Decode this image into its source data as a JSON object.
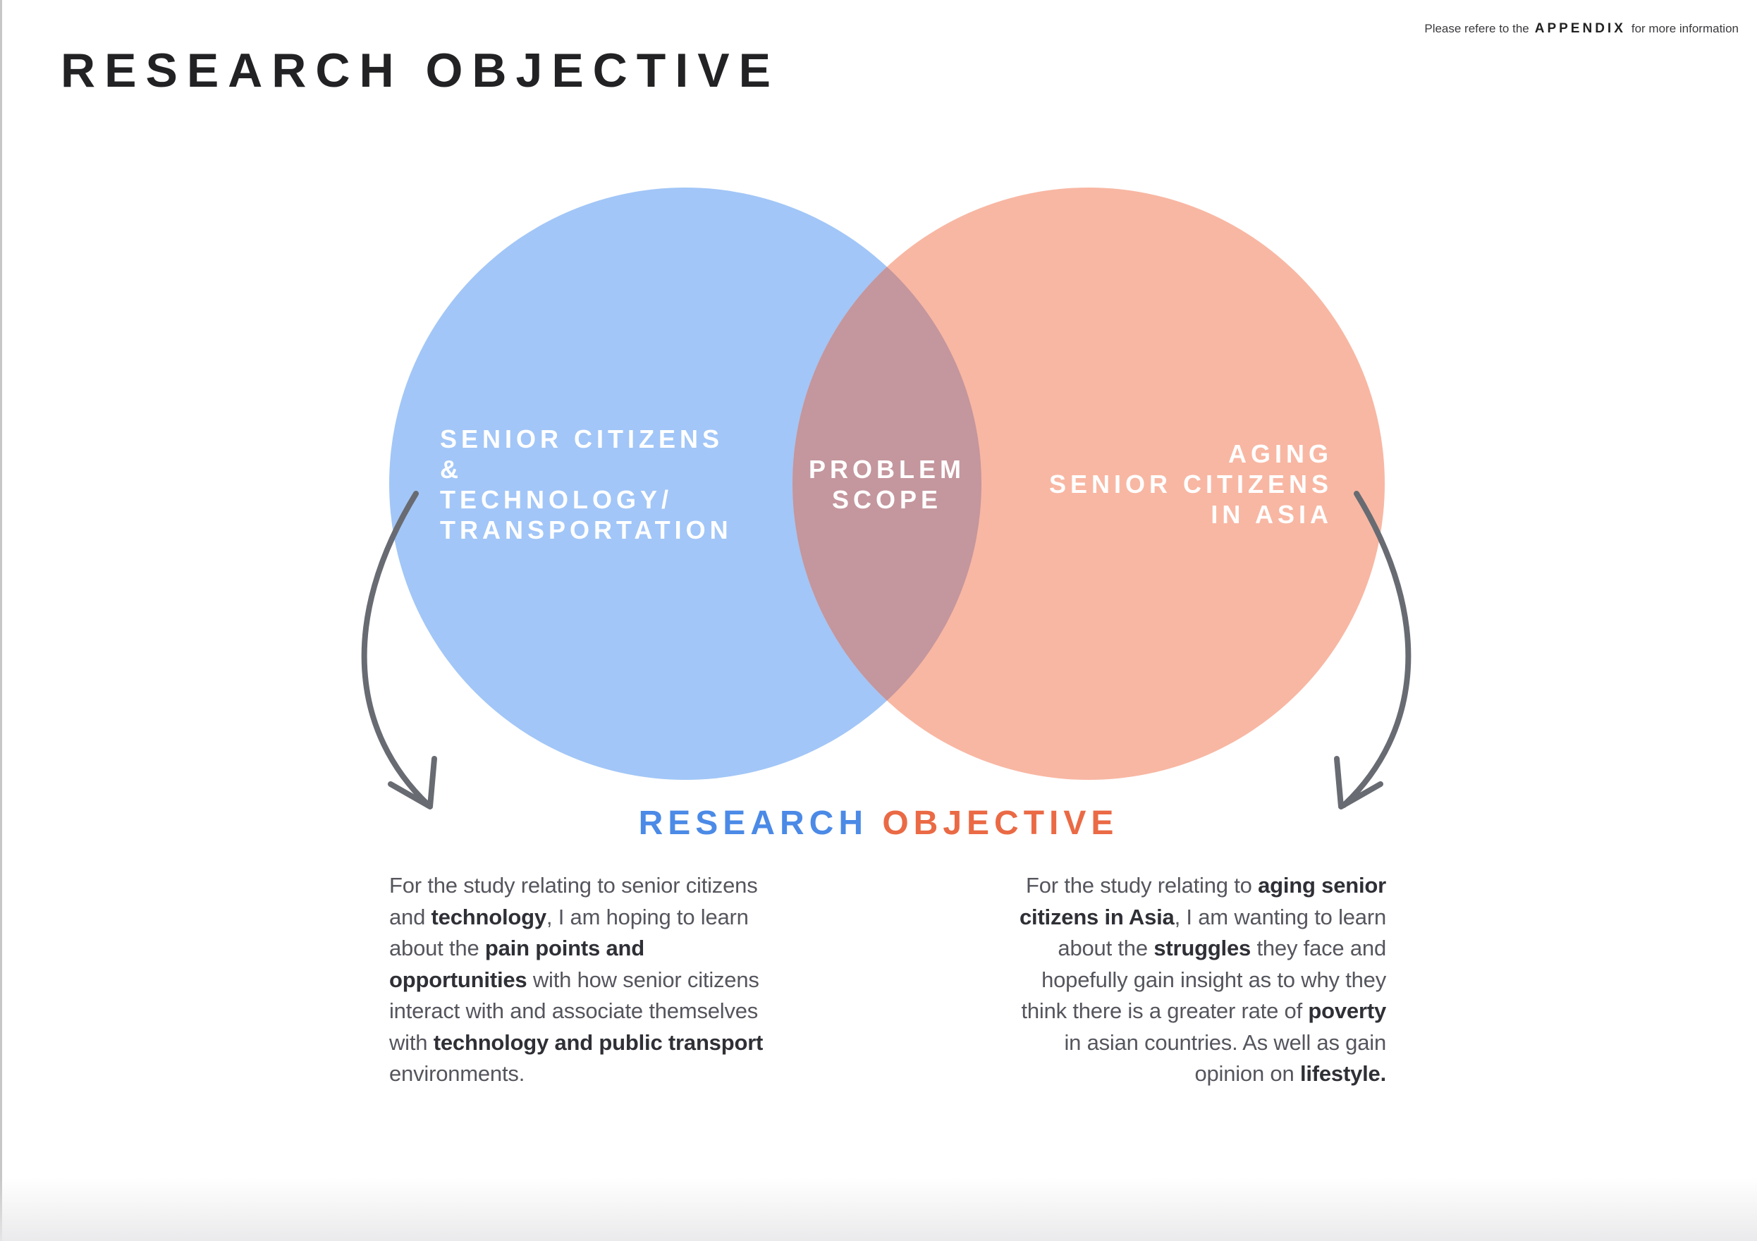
{
  "header": {
    "title": "RESEARCH OBJECTIVE",
    "note_prefix": "Please refere to the",
    "note_link": "APPENDIX",
    "note_suffix": "for more information"
  },
  "diagram": {
    "colors": {
      "left_circle": "#a2c6f7",
      "right_circle": "#f8b7a3",
      "overlap": "#c4969d",
      "arrow": "#686b72",
      "accent_blue": "#4b8ae6",
      "accent_orange": "#ea6a45"
    },
    "left_circle": {
      "lines": [
        "SENIOR CITIZENS",
        "&",
        "TECHNOLOGY/",
        "TRANSPORTATION"
      ]
    },
    "overlap": {
      "lines": [
        "PROBLEM",
        "SCOPE"
      ]
    },
    "right_circle": {
      "lines": [
        "AGING",
        "SENIOR CITIZENS",
        "IN ASIA"
      ]
    }
  },
  "objective": {
    "word1": "RESEARCH",
    "word2": "OBJECTIVE",
    "left_paragraph": [
      {
        "t": "For the study relating to senior citizens and ",
        "b": false
      },
      {
        "t": "technology",
        "b": true
      },
      {
        "t": ", I am hoping to learn about the ",
        "b": false
      },
      {
        "t": "pain points and opportunities",
        "b": true
      },
      {
        "t": " with how senior citizens interact with and associate themselves with ",
        "b": false
      },
      {
        "t": "technology and public transport",
        "b": true
      },
      {
        "t": " environments.",
        "b": false
      }
    ],
    "right_paragraph": [
      {
        "t": "For the study relating to ",
        "b": false
      },
      {
        "t": "aging senior citizens in Asia",
        "b": true
      },
      {
        "t": ", I am wanting to learn about the ",
        "b": false
      },
      {
        "t": "struggles",
        "b": true
      },
      {
        "t": " they face and hopefully gain insight as to why they think there is a greater rate of ",
        "b": false
      },
      {
        "t": "poverty",
        "b": true
      },
      {
        "t": " in asian countries. As well as gain opinion on ",
        "b": false
      },
      {
        "t": "lifestyle.",
        "b": true
      }
    ]
  }
}
